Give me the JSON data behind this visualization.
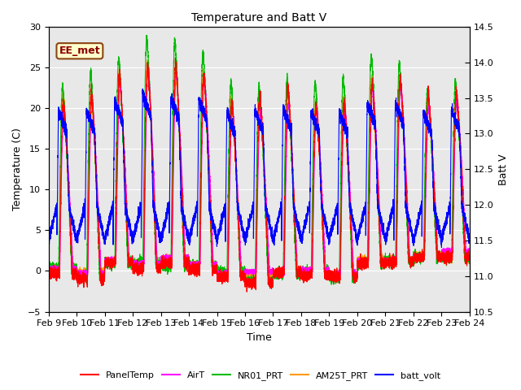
{
  "title": "Temperature and Batt V",
  "xlabel": "Time",
  "ylabel_left": "Temperature (C)",
  "ylabel_right": "Batt V",
  "annotation": "EE_met",
  "ylim_left": [
    -5,
    30
  ],
  "ylim_right": [
    10.5,
    14.5
  ],
  "n_days": 15,
  "x_tick_labels": [
    "Feb 9",
    "Feb 10",
    "Feb 11",
    "Feb 12",
    "Feb 13",
    "Feb 14",
    "Feb 15",
    "Feb 16",
    "Feb 17",
    "Feb 18",
    "Feb 19",
    "Feb 20",
    "Feb 21",
    "Feb 22",
    "Feb 23",
    "Feb 24"
  ],
  "colors": {
    "PanelTemp": "#ff0000",
    "AirT": "#ff00ff",
    "NR01_PRT": "#00bb00",
    "AM25T_PRT": "#ff9900",
    "batt_volt": "#0000ff"
  },
  "bg_color": "#e8e8e8",
  "grid_color": "#ffffff",
  "yticks_left": [
    -5,
    0,
    5,
    10,
    15,
    20,
    25,
    30
  ],
  "yticks_right": [
    10.5,
    11.0,
    11.5,
    12.0,
    12.5,
    13.0,
    13.5,
    14.0,
    14.5
  ],
  "title_fontsize": 10,
  "axis_fontsize": 9,
  "tick_fontsize": 8,
  "legend_fontsize": 8,
  "day_peaks": [
    22.5,
    22.5,
    25.0,
    27.0,
    26.0,
    25.5,
    22.0,
    22.5,
    23.0,
    22.0,
    22.0,
    24.5,
    24.5,
    22.0,
    22.5
  ],
  "day_mins": [
    0.0,
    -0.5,
    1.0,
    0.5,
    1.0,
    0.5,
    -0.5,
    -1.0,
    -0.5,
    -0.5,
    -0.5,
    1.0,
    1.0,
    1.5,
    1.5
  ]
}
